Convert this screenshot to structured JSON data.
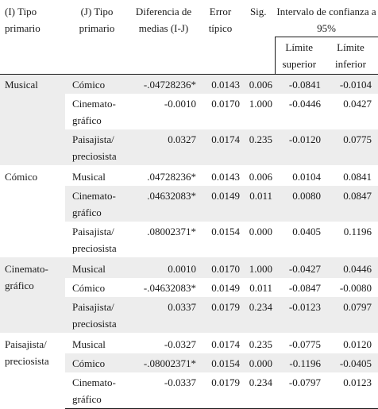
{
  "headers": {
    "i_tipo": "(I) Tipo primario",
    "j_tipo": "(J) Tipo primario",
    "diferencia": "Diferencia de medias (I-J)",
    "error": "Error típico",
    "sig": "Sig.",
    "intervalo": "Intervalo de confianza a 95%",
    "lim_sup": "Límite superior",
    "lim_inf": "Límite inferior"
  },
  "groups": [
    {
      "primary": "Musical",
      "rows": [
        {
          "j": "Cómico",
          "diff": "-.04728236*",
          "err": "0.0143",
          "sig": "0.006",
          "lsup": "-0.0841",
          "linf": "-0.0104"
        },
        {
          "j": "Cinemato-gráfico",
          "diff": "-0.0010",
          "err": "0.0170",
          "sig": "1.000",
          "lsup": "-0.0446",
          "linf": "0.0427"
        },
        {
          "j": "Paisajista/ preciosista",
          "diff": "0.0327",
          "err": "0.0174",
          "sig": "0.235",
          "lsup": "-0.0120",
          "linf": "0.0775"
        }
      ]
    },
    {
      "primary": "Cómico",
      "rows": [
        {
          "j": "Musical",
          "diff": ".04728236*",
          "err": "0.0143",
          "sig": "0.006",
          "lsup": "0.0104",
          "linf": "0.0841"
        },
        {
          "j": "Cinemato-gráfico",
          "diff": ".04632083*",
          "err": "0.0149",
          "sig": "0.011",
          "lsup": "0.0080",
          "linf": "0.0847"
        },
        {
          "j": "Paisajista/ preciosista",
          "diff": ".08002371*",
          "err": "0.0154",
          "sig": "0.000",
          "lsup": "0.0405",
          "linf": "0.1196"
        }
      ]
    },
    {
      "primary": "Cinemato-gráfico",
      "rows": [
        {
          "j": "Musical",
          "diff": "0.0010",
          "err": "0.0170",
          "sig": "1.000",
          "lsup": "-0.0427",
          "linf": "0.0446"
        },
        {
          "j": "Cómico",
          "diff": "-.04632083*",
          "err": "0.0149",
          "sig": "0.011",
          "lsup": "-0.0847",
          "linf": "-0.0080"
        },
        {
          "j": "Paisajista/ preciosista",
          "diff": "0.0337",
          "err": "0.0179",
          "sig": "0.234",
          "lsup": "-0.0123",
          "linf": "0.0797"
        }
      ]
    },
    {
      "primary": "Paisajista/ preciosista",
      "rows": [
        {
          "j": "Musical",
          "diff": "-0.0327",
          "err": "0.0174",
          "sig": "0.235",
          "lsup": "-0.0775",
          "linf": "0.0120"
        },
        {
          "j": "Cómico",
          "diff": "-.08002371*",
          "err": "0.0154",
          "sig": "0.000",
          "lsup": "-0.1196",
          "linf": "-0.0405"
        },
        {
          "j": "Cinemato-gráfico",
          "diff": "-0.0337",
          "err": "0.0179",
          "sig": "0.234",
          "lsup": "-0.0797",
          "linf": "0.0123"
        }
      ]
    }
  ]
}
